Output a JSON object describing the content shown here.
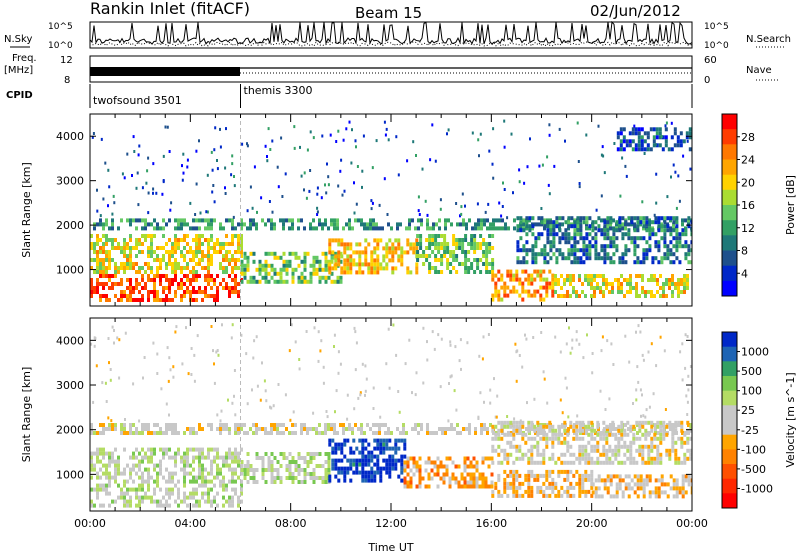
{
  "header": {
    "station": "Rankin Inlet (fitACF)",
    "beam": "Beam 15",
    "date": "02/Jun/2012"
  },
  "summary": {
    "nsky_label": "N.Sky",
    "nsky_ticks": [
      "10^5",
      "10^0"
    ],
    "nsearch_label": "N.Search",
    "nsearch_ticks": [
      "10^5",
      "10^0"
    ],
    "freq_label": "Freq.",
    "freq_unit": "[MHz]",
    "freq_ticks": [
      "12",
      "8"
    ],
    "nave_label": "Nave",
    "nave_ticks": [
      "60",
      "0"
    ],
    "cpid_label": "CPID",
    "cpid_programs": [
      {
        "name": "twofsound",
        "id": "3501",
        "start_hour": 0,
        "end_hour": 6
      },
      {
        "name": "themis",
        "id": "3300",
        "start_hour": 6,
        "end_hour": 24
      }
    ]
  },
  "chart_data": [
    {
      "type": "heatmap",
      "title": "",
      "parameter": "Power",
      "colorbar_label": "Power [dB]",
      "colorbar_ticks": [
        "28",
        "24",
        "20",
        "16",
        "12",
        "8",
        "4"
      ],
      "colorbar_colors": [
        "#ff0000",
        "#ff3c00",
        "#ff7800",
        "#ffa500",
        "#ffd200",
        "#aadc32",
        "#64c864",
        "#32a064",
        "#1e7878",
        "#1e508c",
        "#0028c8",
        "#0000ff"
      ],
      "xlabel": "",
      "ylabel": "Slant Range [km]",
      "xlim": [
        0,
        24
      ],
      "ylim": [
        180,
        4500
      ],
      "yticks": [
        1000,
        2000,
        3000,
        4000
      ],
      "bands": [
        {
          "x0": 0,
          "x1": 6,
          "y0": 300,
          "y1": 900,
          "value": 26
        },
        {
          "x0": 0,
          "x1": 6,
          "y0": 900,
          "y1": 1800,
          "value": 18
        },
        {
          "x0": 0,
          "x1": 24,
          "y0": 1950,
          "y1": 2150,
          "value": 10
        },
        {
          "x0": 6,
          "x1": 10,
          "y0": 700,
          "y1": 1400,
          "value": 14
        },
        {
          "x0": 9.5,
          "x1": 13,
          "y0": 900,
          "y1": 1700,
          "value": 20
        },
        {
          "x0": 13,
          "x1": 16,
          "y0": 900,
          "y1": 1800,
          "value": 14
        },
        {
          "x0": 16,
          "x1": 18.5,
          "y0": 300,
          "y1": 1000,
          "value": 22
        },
        {
          "x0": 18.5,
          "x1": 24,
          "y0": 400,
          "y1": 900,
          "value": 18
        },
        {
          "x0": 17,
          "x1": 24,
          "y0": 1200,
          "y1": 2200,
          "value": 8
        },
        {
          "x0": 21,
          "x1": 24,
          "y0": 3700,
          "y1": 4200,
          "value": 6
        }
      ]
    },
    {
      "type": "heatmap",
      "title": "",
      "parameter": "Velocity",
      "colorbar_label": "Velocity [m s^-1]",
      "colorbar_ticks": [
        "1000",
        "500",
        "100",
        "25",
        "-25",
        "-100",
        "-500",
        "-1000"
      ],
      "colorbar_colors": [
        "#0028c8",
        "#1e64b4",
        "#32a064",
        "#78c850",
        "#b4dc64",
        "#c8c8c8",
        "#c8c8c8",
        "#ffa500",
        "#ff8200",
        "#ff5000",
        "#ff2800",
        "#ff0000"
      ],
      "xlabel": "Time UT",
      "ylabel": "Slant Range [km]",
      "xlim": [
        0,
        24
      ],
      "ylim": [
        180,
        4500
      ],
      "xticks": [
        "00:00",
        "04:00",
        "08:00",
        "12:00",
        "16:00",
        "20:00",
        "00:00"
      ],
      "yticks": [
        1000,
        2000,
        3000,
        4000
      ],
      "bands": [
        {
          "x0": 0,
          "x1": 6,
          "y0": 300,
          "y1": 1600,
          "value": 150
        },
        {
          "x0": 0,
          "x1": 24,
          "y0": 1900,
          "y1": 2150,
          "value": 0
        },
        {
          "x0": 6,
          "x1": 9.5,
          "y0": 800,
          "y1": 1500,
          "value": 200
        },
        {
          "x0": 9.5,
          "x1": 12.5,
          "y0": 900,
          "y1": 1800,
          "value": 900
        },
        {
          "x0": 12.5,
          "x1": 16,
          "y0": 700,
          "y1": 1400,
          "value": -300
        },
        {
          "x0": 16,
          "x1": 20,
          "y0": 500,
          "y1": 1100,
          "value": -200
        },
        {
          "x0": 20,
          "x1": 24,
          "y0": 500,
          "y1": 1000,
          "value": -150
        },
        {
          "x0": 16,
          "x1": 24,
          "y0": 1300,
          "y1": 2200,
          "value": 0
        }
      ]
    }
  ]
}
